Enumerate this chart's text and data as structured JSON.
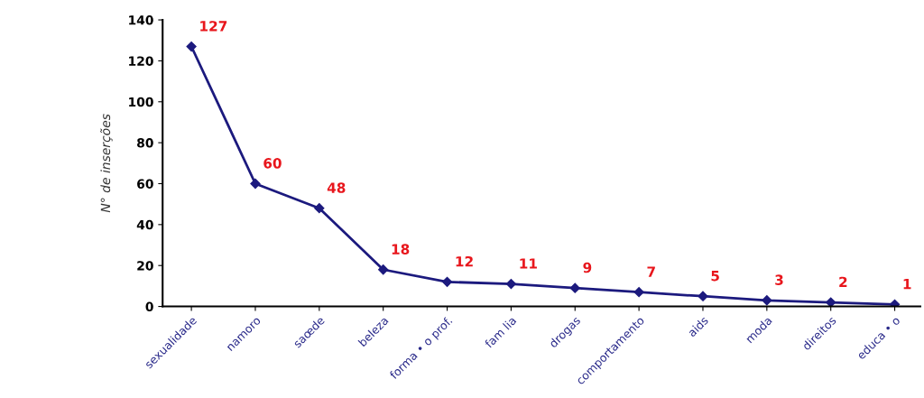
{
  "chart_data": {
    "type": "line",
    "ylabel": "N° de inserções",
    "categories": [
      "sexualidade",
      "namoro",
      "saœde",
      "beleza",
      "forma • o prof.",
      "fam lia",
      "drogas",
      "comportamento",
      "aids",
      "moda",
      "direitos",
      "educa • o"
    ],
    "series": [
      {
        "color": "#1c1a7e",
        "values": [
          127,
          60,
          48,
          18,
          12,
          11,
          9,
          7,
          5,
          3,
          2,
          1
        ]
      }
    ],
    "ylim": [
      0,
      140
    ],
    "yticks": [
      0,
      20,
      40,
      60,
      80,
      100,
      120,
      140
    ],
    "data_labels": true,
    "marker": "diamond",
    "line_style": "solid",
    "grid": false,
    "legend": false
  }
}
